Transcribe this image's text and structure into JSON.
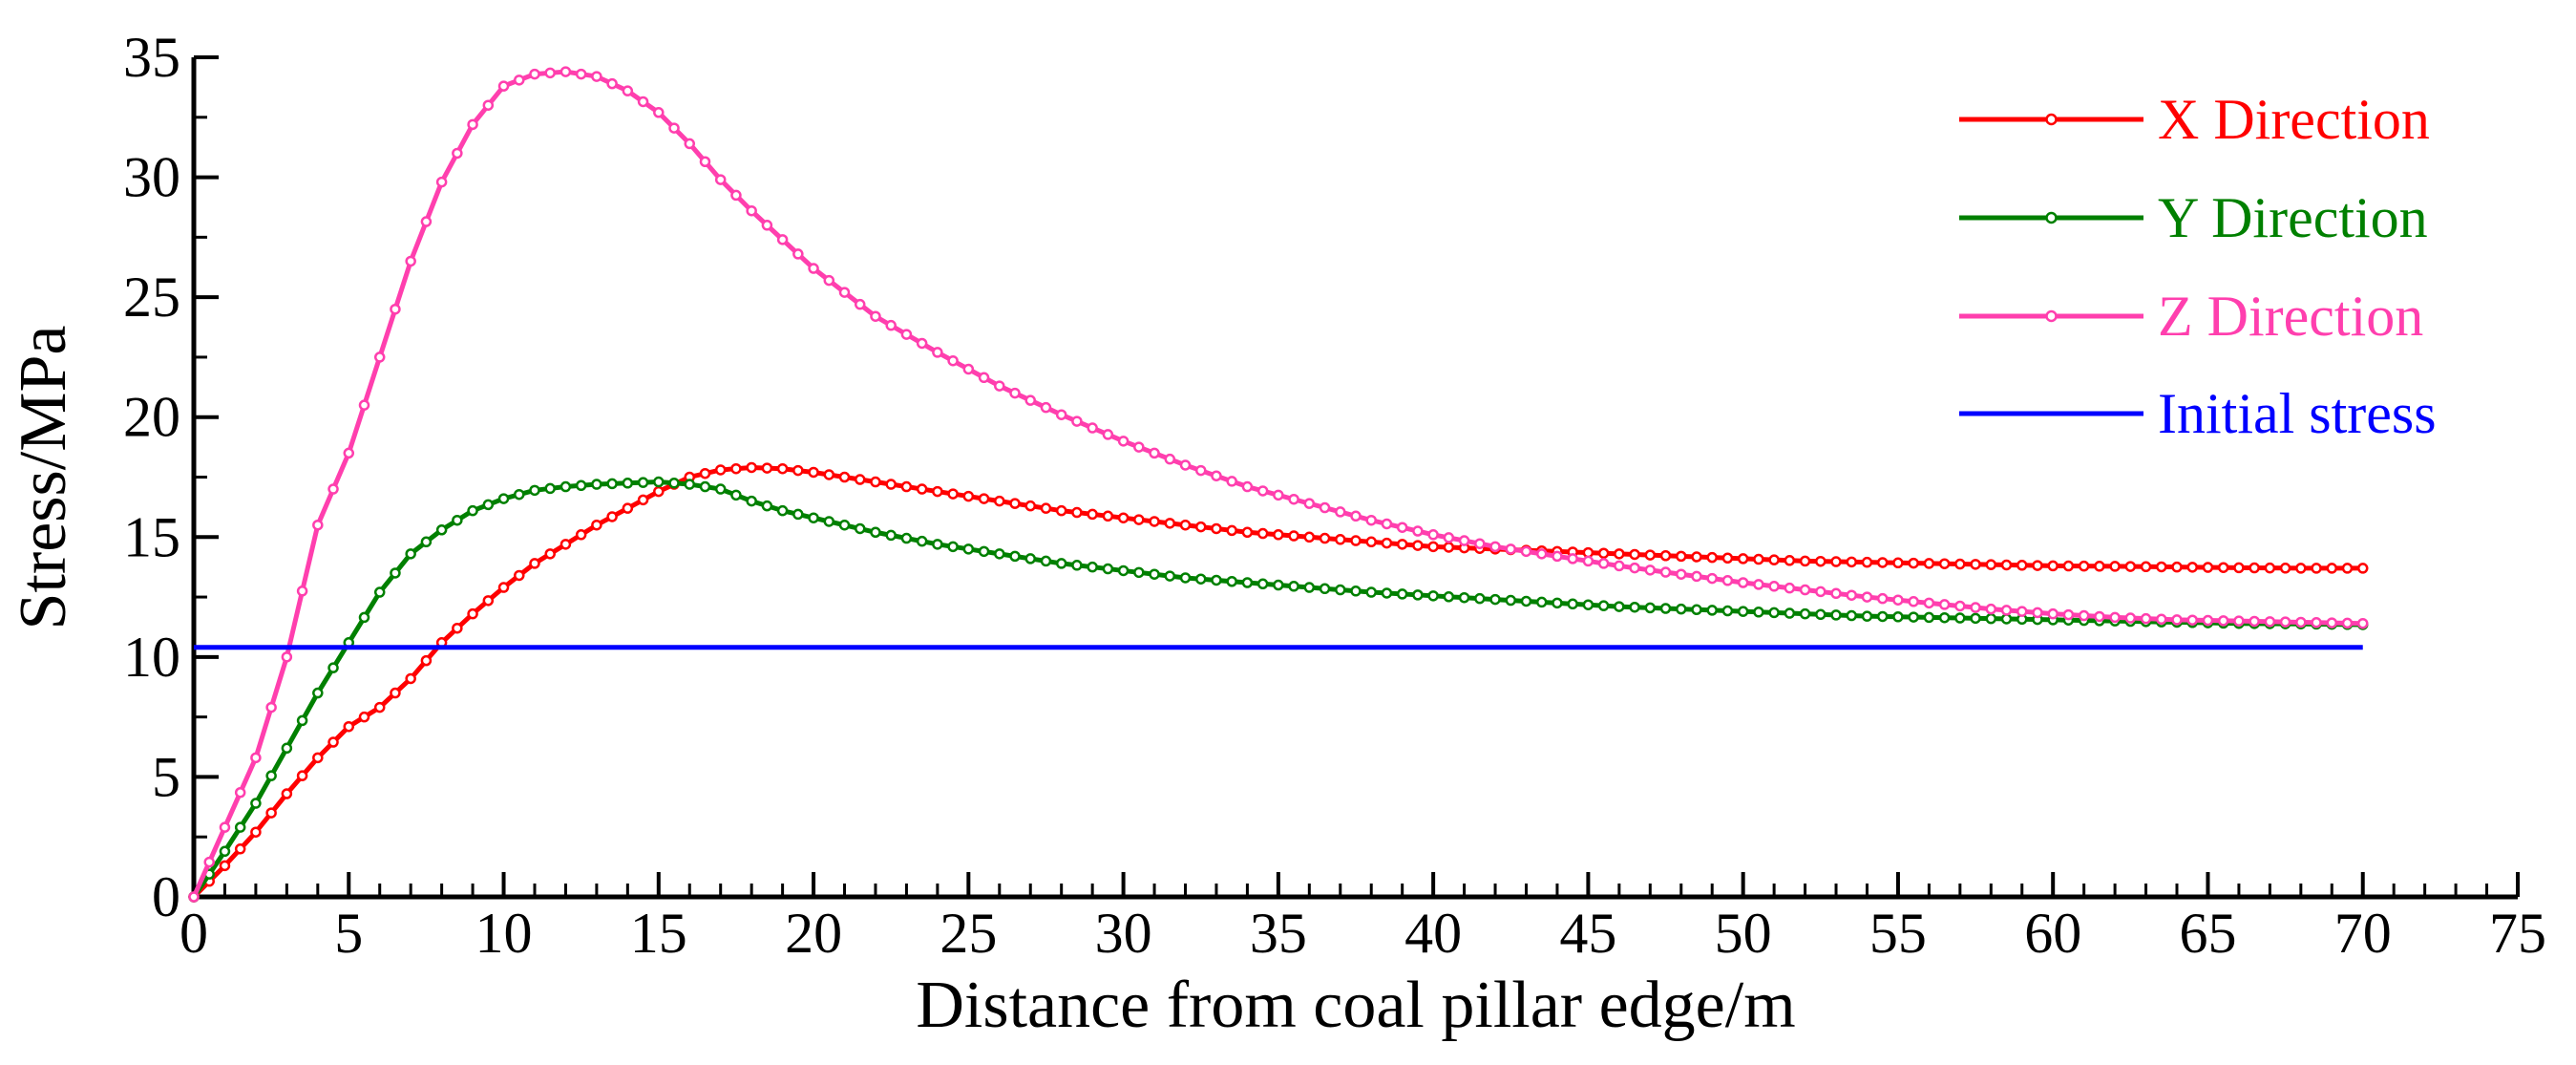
{
  "chart_data": {
    "type": "line",
    "title": "",
    "xlabel": "Distance from coal pillar edge/m",
    "ylabel": "Stress/MPa",
    "xlim": [
      0,
      75
    ],
    "ylim": [
      0,
      35
    ],
    "x_ticks": [
      0,
      5,
      10,
      15,
      20,
      25,
      30,
      35,
      40,
      45,
      50,
      55,
      60,
      65,
      70,
      75
    ],
    "y_ticks": [
      0,
      5,
      10,
      15,
      20,
      25,
      30,
      35
    ],
    "grid": false,
    "legend_position": "top-right",
    "series": [
      {
        "name": "X Direction",
        "color": "#ff0000",
        "markers": true,
        "x": [
          0,
          1,
          2,
          3,
          4,
          5,
          6,
          7,
          8,
          9,
          10,
          11,
          12,
          13,
          14,
          15,
          16,
          17,
          18,
          19,
          20,
          22,
          24,
          26,
          28,
          30,
          32,
          34,
          36,
          38,
          40,
          42,
          44,
          46,
          48,
          50,
          52,
          54,
          56,
          58,
          60,
          62,
          64,
          66,
          68,
          70
        ],
        "y": [
          0,
          1.3,
          2.7,
          4.3,
          5.8,
          7.1,
          7.9,
          9.1,
          10.6,
          11.8,
          12.9,
          13.9,
          14.7,
          15.5,
          16.2,
          16.9,
          17.5,
          17.8,
          17.9,
          17.85,
          17.7,
          17.3,
          16.9,
          16.5,
          16.1,
          15.8,
          15.5,
          15.2,
          15.0,
          14.8,
          14.6,
          14.5,
          14.4,
          14.3,
          14.2,
          14.1,
          14.0,
          13.95,
          13.9,
          13.85,
          13.8,
          13.78,
          13.75,
          13.72,
          13.7,
          13.7
        ]
      },
      {
        "name": "Y Direction",
        "color": "#008000",
        "markers": true,
        "x": [
          0,
          1,
          2,
          3,
          4,
          5,
          6,
          7,
          8,
          9,
          10,
          11,
          12,
          13,
          14,
          15,
          16,
          17,
          18,
          19,
          20,
          22,
          24,
          26,
          28,
          30,
          32,
          34,
          36,
          38,
          40,
          42,
          44,
          46,
          48,
          50,
          52,
          54,
          56,
          58,
          60,
          62,
          64,
          66,
          68,
          70
        ],
        "y": [
          0,
          1.9,
          3.9,
          6.2,
          8.5,
          10.6,
          12.7,
          14.3,
          15.3,
          16.1,
          16.6,
          16.95,
          17.1,
          17.2,
          17.25,
          17.3,
          17.2,
          17.0,
          16.5,
          16.1,
          15.8,
          15.2,
          14.7,
          14.3,
          13.9,
          13.6,
          13.3,
          13.1,
          12.9,
          12.7,
          12.55,
          12.4,
          12.25,
          12.1,
          12.0,
          11.9,
          11.8,
          11.7,
          11.65,
          11.6,
          11.55,
          11.5,
          11.45,
          11.4,
          11.38,
          11.35
        ]
      },
      {
        "name": "Z Direction",
        "color": "#ff3fae",
        "markers": true,
        "x": [
          0,
          1,
          2,
          3,
          4,
          5,
          6,
          7,
          8,
          9,
          10,
          11,
          12,
          13,
          14,
          15,
          16,
          17,
          18,
          19,
          20,
          22,
          24,
          26,
          28,
          30,
          32,
          34,
          36,
          38,
          40,
          42,
          44,
          46,
          48,
          50,
          52,
          54,
          56,
          58,
          60,
          62,
          64,
          66,
          68,
          70
        ],
        "y": [
          0,
          2.9,
          5.8,
          10.0,
          15.5,
          18.5,
          22.5,
          26.5,
          29.8,
          32.2,
          33.8,
          34.3,
          34.4,
          34.2,
          33.6,
          32.7,
          31.4,
          29.9,
          28.6,
          27.4,
          26.2,
          24.2,
          22.7,
          21.3,
          20.1,
          19.0,
          18.0,
          17.1,
          16.4,
          15.7,
          15.1,
          14.6,
          14.2,
          13.8,
          13.45,
          13.1,
          12.8,
          12.5,
          12.25,
          12.0,
          11.8,
          11.65,
          11.55,
          11.5,
          11.45,
          11.4
        ]
      },
      {
        "name": "Initial stress",
        "color": "#0000ff",
        "markers": false,
        "x": [
          0,
          70
        ],
        "y": [
          10.4,
          10.4
        ]
      }
    ]
  }
}
